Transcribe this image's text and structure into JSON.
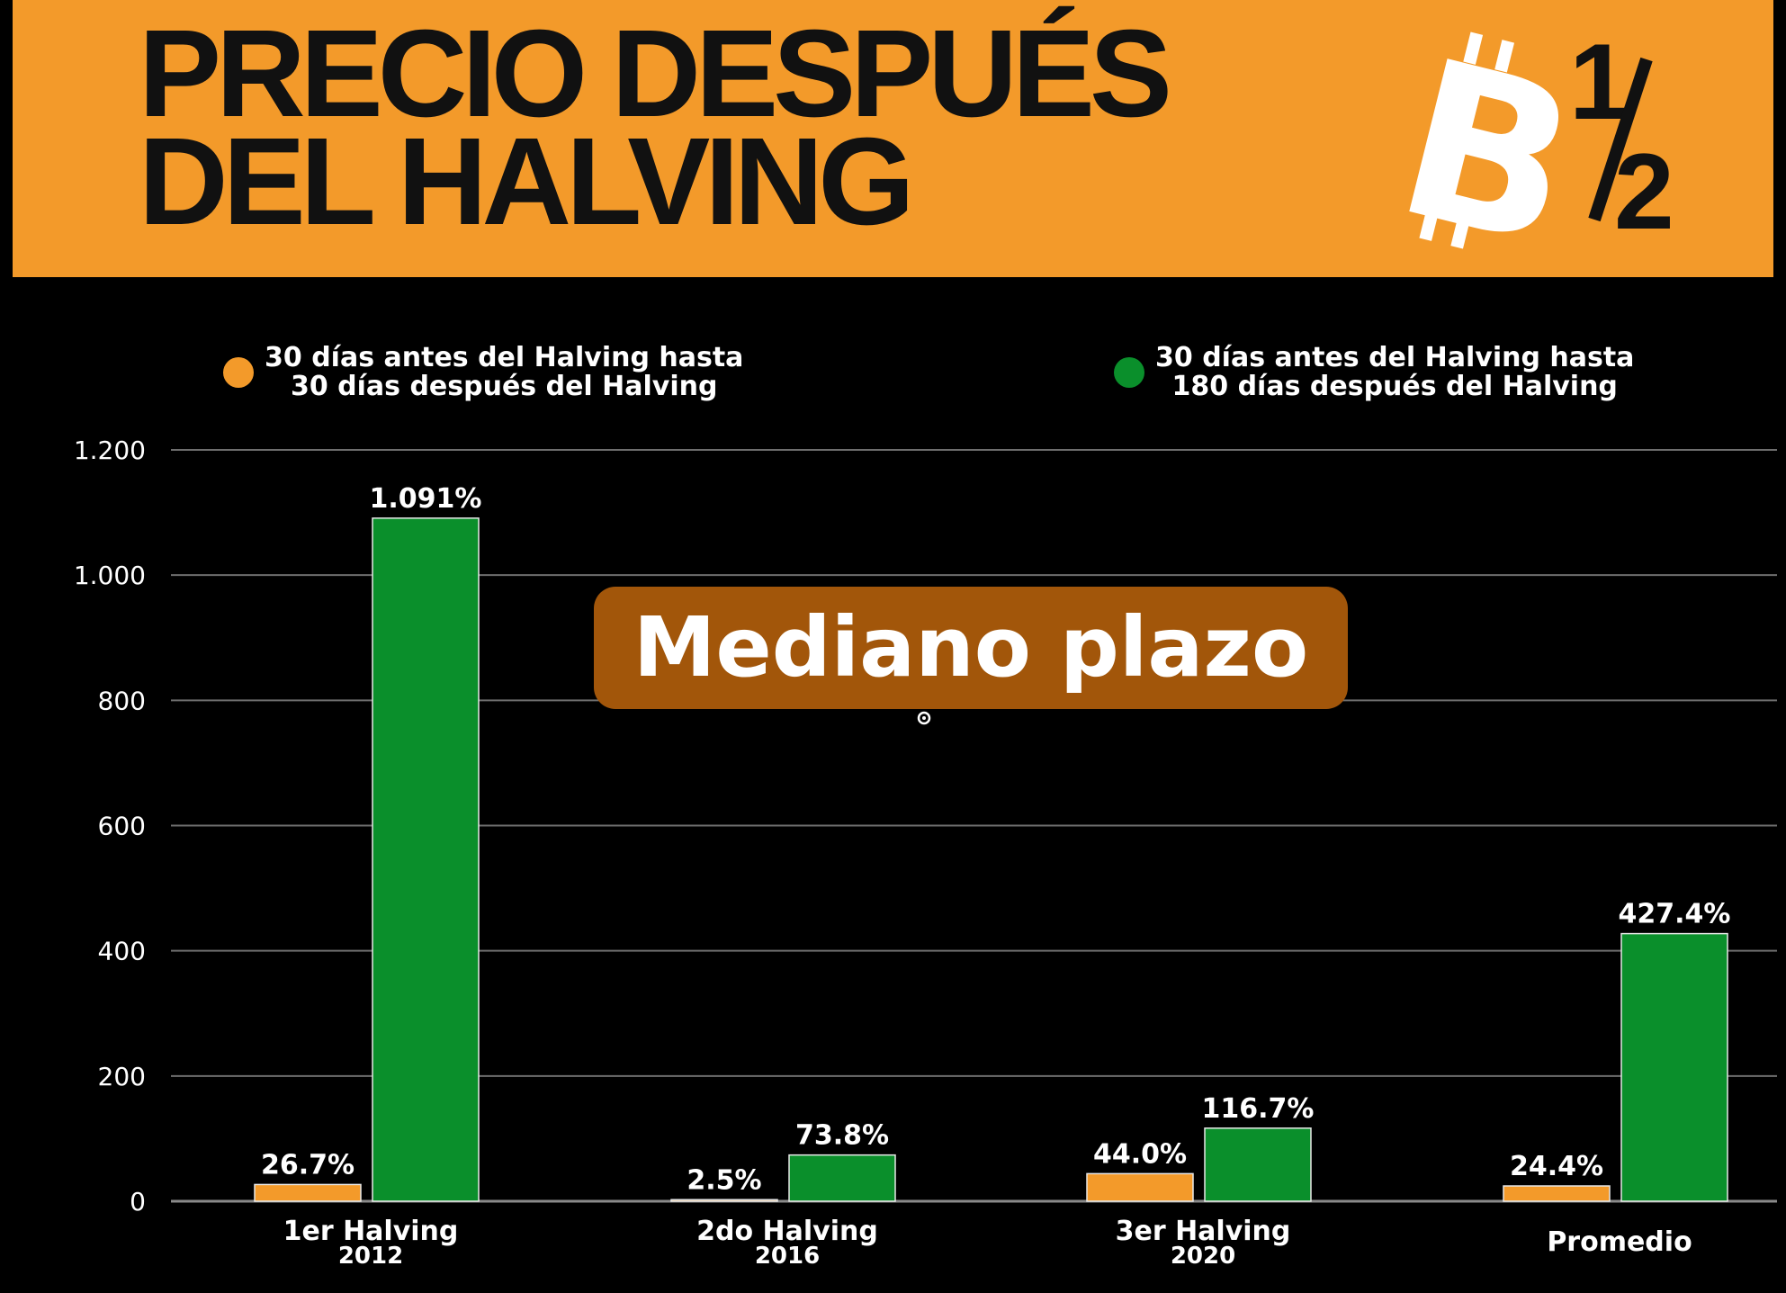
{
  "header": {
    "title_line1": "PRECIO DESPUÉS",
    "title_line2": "DEL HALVING",
    "background_color": "#f39a2a",
    "logo": {
      "icon": "bitcoin-half-icon",
      "glyph": "B",
      "fraction_top": "1",
      "fraction_bottom": "2"
    }
  },
  "legend": [
    {
      "line1": "30 días antes del Halving hasta",
      "line2": "30 días después del Halving",
      "color": "#f39a2a"
    },
    {
      "line1": "30 días antes del Halving hasta",
      "line2": "180 días después del Halving",
      "color": "#0a8f2b"
    }
  ],
  "overlay": {
    "label": "Mediano plazo",
    "color": "#a2560a"
  },
  "chart_data": {
    "type": "bar",
    "categories": [
      "1er Halving",
      "2do Halving",
      "3er Halving",
      "Promedio"
    ],
    "category_sublabels": [
      "2012",
      "2016",
      "2020",
      ""
    ],
    "series": [
      {
        "values": [
          26.7,
          2.5,
          44.0,
          24.4
        ],
        "labels": [
          "26.7%",
          "2.5%",
          "44.0%",
          "24.4%"
        ],
        "color": "#f39a2a"
      },
      {
        "values": [
          1091,
          73.8,
          116.7,
          427.4
        ],
        "labels": [
          "1.091%",
          "73.8%",
          "116.7%",
          "427.4%"
        ],
        "color": "#0a8f2b"
      }
    ],
    "ylim": [
      0,
      1200
    ],
    "yticks": [
      0,
      200,
      400,
      600,
      800,
      1000,
      1200
    ],
    "ytick_labels": [
      "0",
      "200",
      "400",
      "600",
      "800",
      "1.000",
      "1.200"
    ],
    "grid": true,
    "legend_position": "top"
  }
}
